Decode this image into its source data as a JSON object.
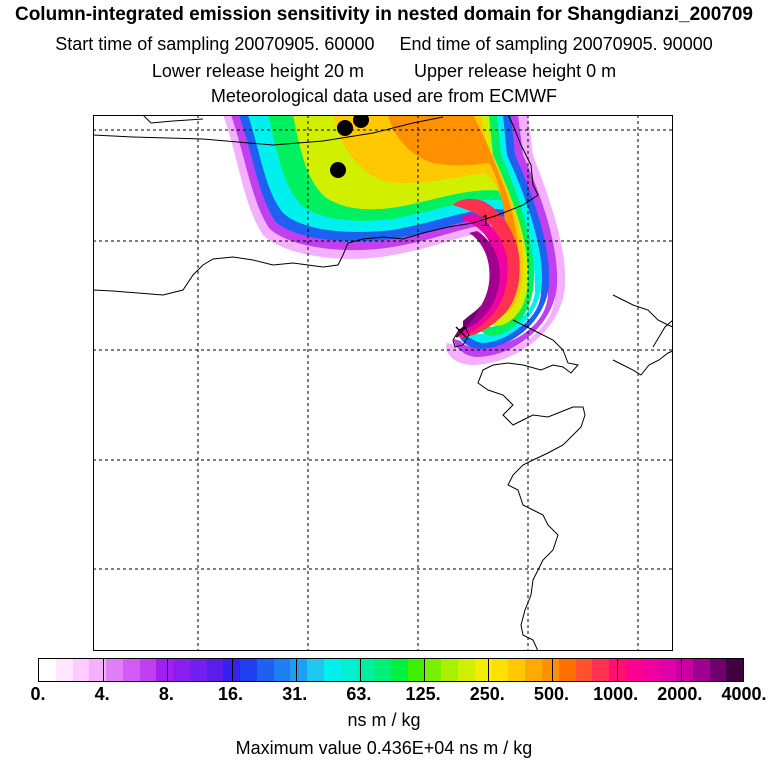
{
  "header": {
    "title": "Column-integrated emission sensitivity in nested domain for Shangdianzi_200709",
    "start_label": "Start time of sampling 20070905. 60000",
    "end_label": "End time of sampling 20070905. 90000",
    "lower_label": "Lower release height   20 m",
    "upper_label": "Upper release height    0 m",
    "met_label": "Meteorological data used are from ECMWF"
  },
  "map": {
    "contour_label": "1",
    "colors": {
      "frame": "#000000",
      "grid": "#000000",
      "coast": "#000000",
      "marker": "#000000"
    }
  },
  "colorbar": {
    "tick_labels": [
      "0.",
      "4.",
      "8.",
      "16.",
      "31.",
      "63.",
      "125.",
      "250.",
      "500.",
      "1000.",
      "2000.",
      "4000."
    ],
    "units": "ns m / kg",
    "max_value": "Maximum value  0.436E+04 ns m / kg",
    "colors": [
      "#ffffff",
      "#ffe6ff",
      "#ffccff",
      "#f4b0ff",
      "#e07ef7",
      "#d05cf5",
      "#c040f0",
      "#a020f0",
      "#8a1ef0",
      "#7020f0",
      "#5a1ee8",
      "#3a20f0",
      "#1e3ff0",
      "#1e60f0",
      "#1e80f0",
      "#1ea0f0",
      "#1ec8f0",
      "#00f0f0",
      "#00f0d0",
      "#00f0a0",
      "#00f078",
      "#00f040",
      "#40f000",
      "#78f000",
      "#a8f000",
      "#d0f000",
      "#f0f000",
      "#ffe000",
      "#ffc800",
      "#ffaa00",
      "#ff9000",
      "#ff7000",
      "#ff5030",
      "#ff3050",
      "#ff1070",
      "#ff0090",
      "#f000a0",
      "#e000a8",
      "#c800a0",
      "#a00090",
      "#700070",
      "#400040"
    ]
  }
}
